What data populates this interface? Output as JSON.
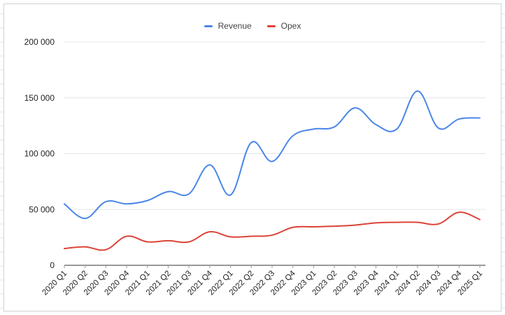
{
  "colors": {
    "revenue": "#4a86e8",
    "opex": "#db4437",
    "gridline": "#e6e6e6",
    "axis": "#333333",
    "frame": "#cfd4d9"
  },
  "chart_data": {
    "type": "line",
    "title": "",
    "xlabel": "",
    "ylabel": "",
    "ylim": [
      0,
      200000
    ],
    "yticks": [
      0,
      50000,
      100000,
      150000,
      200000
    ],
    "ytick_labels": [
      "0",
      "50 000",
      "100 000",
      "150 000",
      "200 000"
    ],
    "grid": true,
    "legend_position": "top",
    "categories": [
      "2020 Q1",
      "2020 Q2",
      "2020 Q3",
      "2020 Q4",
      "2021 Q1",
      "2021 Q2",
      "2021 Q3",
      "2021 Q4",
      "2022 Q1",
      "2022 Q2",
      "2022 Q3",
      "2022 Q4",
      "2023 Q1",
      "2023 Q2",
      "2023 Q3",
      "2023 Q4",
      "2024 Q1",
      "2024 Q2",
      "2024 Q3",
      "2024 Q4",
      "2025 Q1"
    ],
    "series": [
      {
        "name": "Revenue",
        "color": "#4a86e8",
        "values": [
          55000,
          42000,
          57000,
          55000,
          58000,
          66000,
          64000,
          90000,
          63000,
          110000,
          93000,
          116000,
          122000,
          124000,
          141000,
          126000,
          122000,
          156000,
          123000,
          131000,
          132000
        ]
      },
      {
        "name": "Opex",
        "color": "#db4437",
        "values": [
          15000,
          16500,
          14000,
          26000,
          21000,
          22000,
          21000,
          30000,
          25500,
          26000,
          27000,
          34000,
          34500,
          35000,
          36000,
          38000,
          38500,
          38500,
          37000,
          47500,
          41000
        ]
      }
    ]
  }
}
